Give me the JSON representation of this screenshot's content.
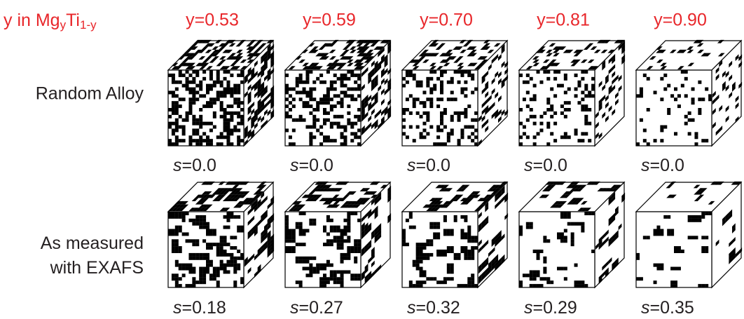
{
  "header": {
    "label": {
      "text": "y in Mg",
      "sub1": "y",
      "text2": "Ti",
      "sub2": "1-y"
    },
    "columns": [
      "y=0.53",
      "y=0.59",
      "y=0.70",
      "y=0.81",
      "y=0.90"
    ]
  },
  "rows": [
    {
      "label": [
        "Random Alloy"
      ],
      "order_labels": [
        "s=0.0",
        "s=0.0",
        "s=0.0",
        "s=0.0",
        "s=0.0"
      ]
    },
    {
      "label": [
        "As measured",
        "with EXAFS"
      ],
      "order_labels": [
        "s=0.18",
        "s=0.27",
        "s=0.32",
        "s=0.29",
        "s=0.35"
      ]
    }
  ]
}
